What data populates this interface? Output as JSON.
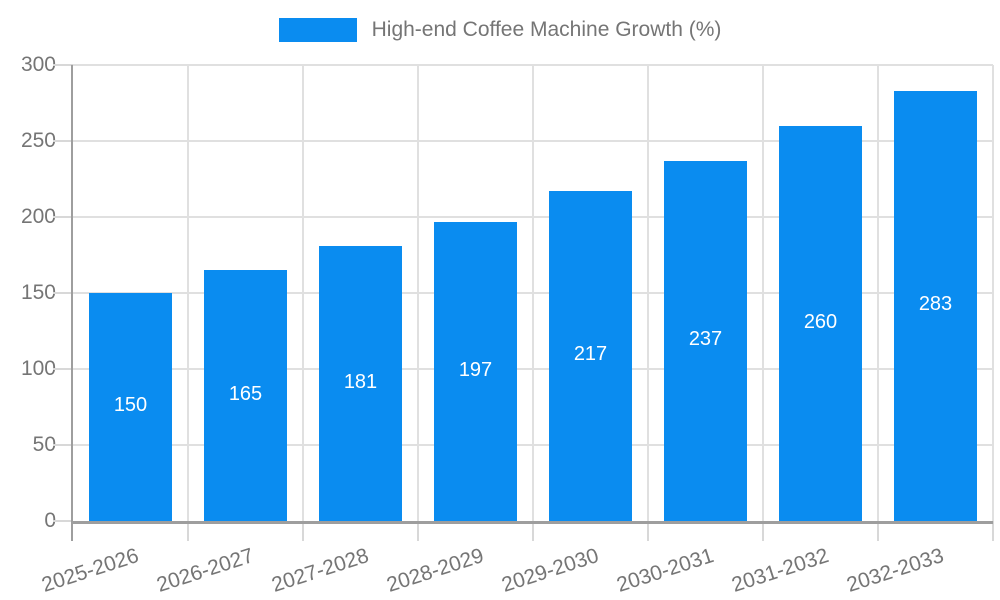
{
  "chart_data": {
    "type": "bar",
    "legend_label": "High-end Coffee Machine Growth (%)",
    "categories": [
      "2025-2026",
      "2026-2027",
      "2027-2028",
      "2028-2029",
      "2029-2030",
      "2030-2031",
      "2031-2032",
      "2032-2033"
    ],
    "values": [
      150,
      165,
      181,
      197,
      217,
      237,
      260,
      283
    ],
    "ylim": [
      0,
      300
    ],
    "yticks": [
      0,
      50,
      100,
      150,
      200,
      250,
      300
    ],
    "grid": true,
    "legend_position": "top-center",
    "x_label_rotation_deg": -18,
    "colors": {
      "bar": "#0a8cf0",
      "grid": "#e0e0e0",
      "tick": "#d8d8d8",
      "axis": "#9e9e9e",
      "text": "#757575",
      "value_label": "#ffffff",
      "background": "#ffffff"
    }
  }
}
